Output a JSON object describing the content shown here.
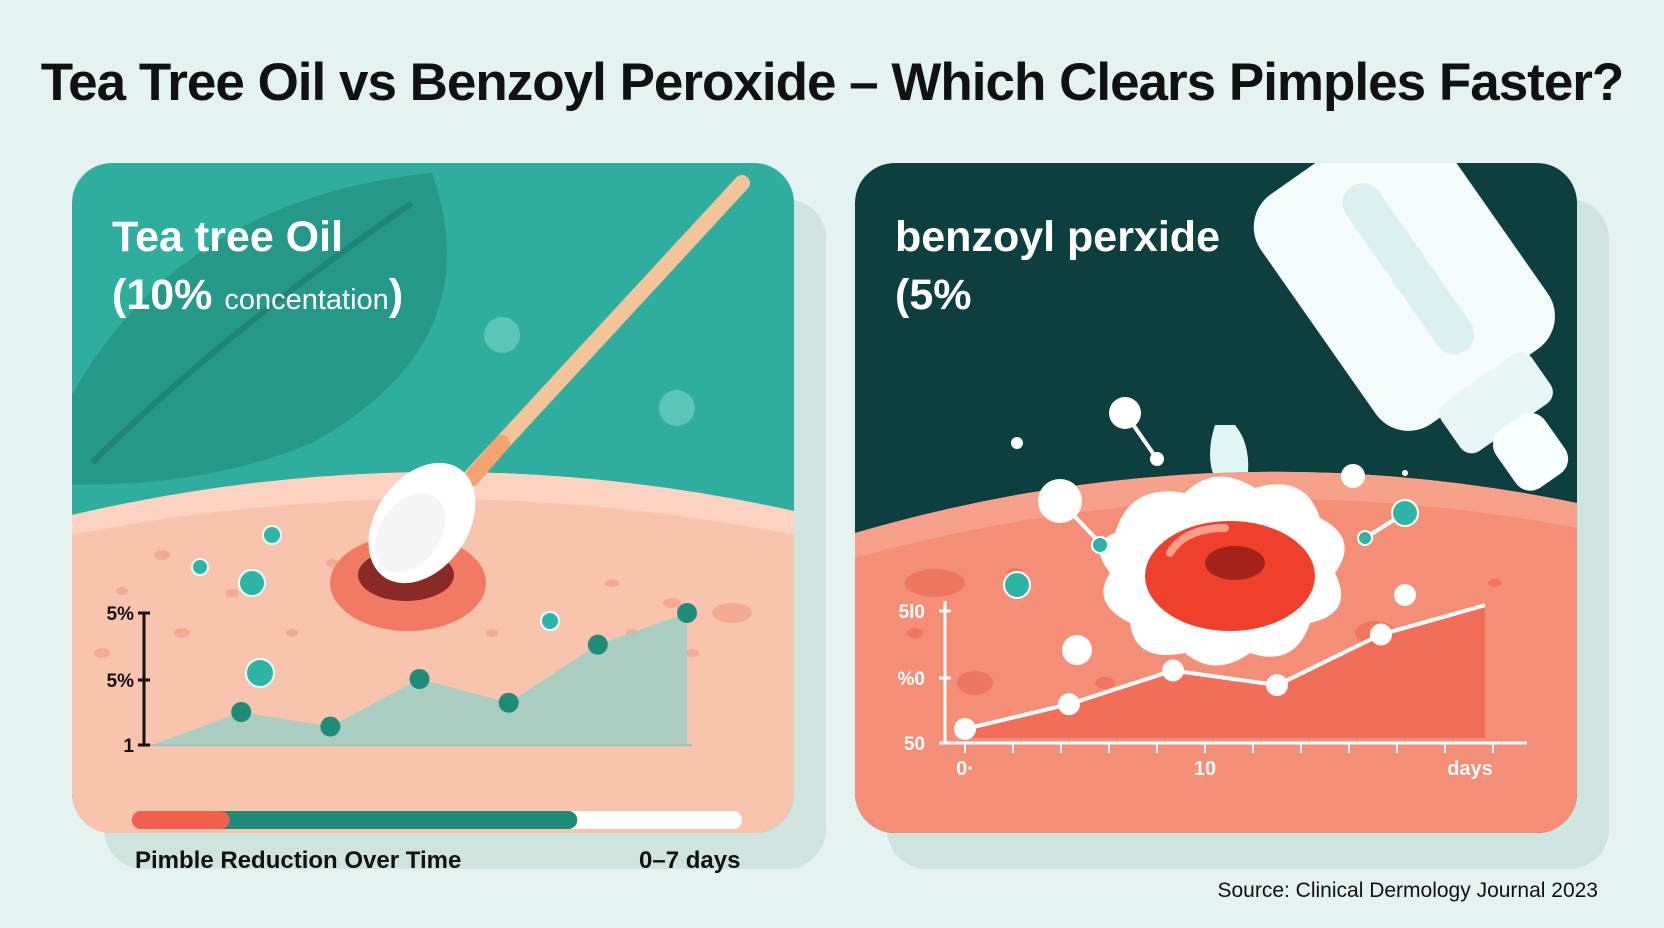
{
  "title": "Tea Tree Oil vs Benzoyl Peroxide – Which Clears Pimples Faster?",
  "source": "Source: Clinical Dermology Journal 2023",
  "left_panel": {
    "name": "Tea tree Oil",
    "concentration_open": "(10%",
    "concentration_word": "concentation",
    "concentration_close": ")",
    "footer_left": "Pimble Reduction Over Time",
    "footer_right": "0–7 days",
    "progress": {
      "red_fraction": 0.16,
      "green_fraction": 0.73
    },
    "colors": {
      "top": "#2fae9f",
      "skin": "#f8c4ae",
      "line": "#1f8c7a",
      "area": "#9ccfc4"
    }
  },
  "right_panel": {
    "name": "benzoyl perxide",
    "concentration": "(5%",
    "colors": {
      "top": "#0d3f40",
      "skin": "#f58e77",
      "line": "#ffffff",
      "area": "#f26a55"
    }
  },
  "chart_data": [
    {
      "type": "area",
      "y_tick_labels": [
        "5%",
        "5%",
        "1"
      ],
      "points": [
        {
          "x": 0,
          "y": 0
        },
        {
          "x": 1,
          "y": 0.25
        },
        {
          "x": 2,
          "y": 0.14
        },
        {
          "x": 3,
          "y": 0.5
        },
        {
          "x": 4,
          "y": 0.32
        },
        {
          "x": 5,
          "y": 0.76
        },
        {
          "x": 6,
          "y": 1.0
        }
      ],
      "xlim": [
        0,
        6
      ],
      "ylim": [
        0,
        1
      ]
    },
    {
      "type": "area",
      "y_tick_labels": [
        "5l0",
        "%0",
        "50"
      ],
      "x_tick_labels": [
        "0·",
        "10",
        "days"
      ],
      "points": [
        {
          "x": 0,
          "y": 0.08
        },
        {
          "x": 1,
          "y": 0.3
        },
        {
          "x": 2,
          "y": 0.6
        },
        {
          "x": 3,
          "y": 0.47
        },
        {
          "x": 4,
          "y": 0.92
        }
      ],
      "area_end": {
        "x": 5,
        "y": 1.18
      },
      "xlim": [
        0,
        5
      ],
      "ylim": [
        0,
        1.2
      ]
    }
  ]
}
